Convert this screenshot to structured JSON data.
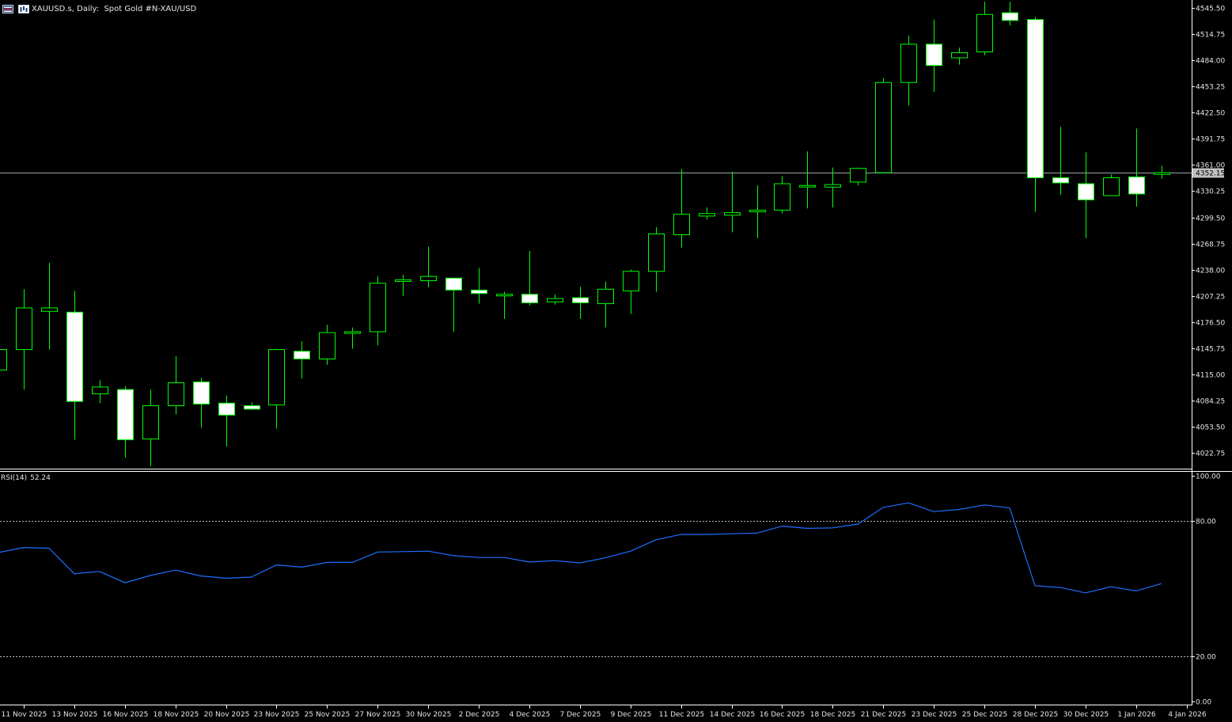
{
  "header": {
    "symbol": "XAUUSD.s,",
    "timeframe": "Daily:",
    "description": "Spot Gold #N-XAU/USD",
    "icons": [
      "chart-window-icon",
      "chart-type-icon"
    ]
  },
  "colors": {
    "background": "#000000",
    "candle": "#00ff00",
    "bull_body": "#000000",
    "bear_body": "#ffffff",
    "rsi_line": "#1e6fff",
    "price_line": "#9aa3ad",
    "price_tag_bg": "#c0c0c0",
    "text": "#e6e6e6"
  },
  "price_tag": "4352.15",
  "indicator": {
    "name": "RSI(14)",
    "value": "52.24"
  },
  "chart_data": [
    {
      "type": "candlestick",
      "title": "XAUUSD.s, Daily: Spot Gold #N-XAU/USD",
      "ylim": [
        4004,
        4555
      ],
      "y_ticks": [
        "4545.50",
        "4514.75",
        "4484.00",
        "4453.25",
        "4422.50",
        "4391.75",
        "4361.00",
        "4330.25",
        "4299.50",
        "4268.75",
        "4238.00",
        "4207.25",
        "4176.50",
        "4145.75",
        "4115.00",
        "4084.25",
        "4053.50",
        "4022.75"
      ],
      "x_labels": [
        "11 Nov 2025",
        "13 Nov 2025",
        "16 Nov 2025",
        "18 Nov 2025",
        "20 Nov 2025",
        "23 Nov 2025",
        "25 Nov 2025",
        "27 Nov 2025",
        "30 Nov 2025",
        "2 Dec 2025",
        "4 Dec 2025",
        "7 Dec 2025",
        "9 Dec 2025",
        "11 Dec 2025",
        "14 Dec 2025",
        "16 Dec 2025",
        "18 Dec 2025",
        "21 Dec 2025",
        "23 Dec 2025",
        "25 Dec 2025",
        "28 Dec 2025",
        "30 Dec 2025",
        "1 Jan 2026",
        "4 Jan 2026"
      ],
      "last_price": 4352.15,
      "candles": [
        {
          "o": 4120,
          "h": 4146,
          "l": 4105,
          "c": 4144
        },
        {
          "o": 4144,
          "h": 4215,
          "l": 4097,
          "c": 4193
        },
        {
          "o": 4189,
          "h": 4246,
          "l": 4144,
          "c": 4193
        },
        {
          "o": 4188,
          "h": 4213,
          "l": 4038,
          "c": 4083
        },
        {
          "o": 4092,
          "h": 4108,
          "l": 4081,
          "c": 4100
        },
        {
          "o": 4097,
          "h": 4101,
          "l": 4017,
          "c": 4038
        },
        {
          "o": 4039,
          "h": 4097,
          "l": 4007,
          "c": 4078
        },
        {
          "o": 4078,
          "h": 4136,
          "l": 4068,
          "c": 4105
        },
        {
          "o": 4106,
          "h": 4111,
          "l": 4052,
          "c": 4080
        },
        {
          "o": 4081,
          "h": 4090,
          "l": 4030,
          "c": 4067
        },
        {
          "o": 4078,
          "h": 4082,
          "l": 4073,
          "c": 4074
        },
        {
          "o": 4079,
          "h": 4145,
          "l": 4051,
          "c": 4144
        },
        {
          "o": 4142,
          "h": 4154,
          "l": 4110,
          "c": 4133
        },
        {
          "o": 4133,
          "h": 4173,
          "l": 4126,
          "c": 4164
        },
        {
          "o": 4164,
          "h": 4170,
          "l": 4145,
          "c": 4165
        },
        {
          "o": 4165,
          "h": 4230,
          "l": 4149,
          "c": 4222
        },
        {
          "o": 4225,
          "h": 4232,
          "l": 4207,
          "c": 4226
        },
        {
          "o": 4225,
          "h": 4265,
          "l": 4217,
          "c": 4230
        },
        {
          "o": 4228,
          "h": 4228,
          "l": 4165,
          "c": 4214
        },
        {
          "o": 4214,
          "h": 4240,
          "l": 4198,
          "c": 4210
        },
        {
          "o": 4209,
          "h": 4212,
          "l": 4180,
          "c": 4209
        },
        {
          "o": 4209,
          "h": 4260,
          "l": 4196,
          "c": 4199
        },
        {
          "o": 4200,
          "h": 4209,
          "l": 4197,
          "c": 4204
        },
        {
          "o": 4205,
          "h": 4218,
          "l": 4180,
          "c": 4199
        },
        {
          "o": 4198,
          "h": 4224,
          "l": 4170,
          "c": 4215
        },
        {
          "o": 4213,
          "h": 4238,
          "l": 4186,
          "c": 4236
        },
        {
          "o": 4236,
          "h": 4288,
          "l": 4212,
          "c": 4280
        },
        {
          "o": 4279,
          "h": 4356,
          "l": 4264,
          "c": 4303
        },
        {
          "o": 4301,
          "h": 4311,
          "l": 4297,
          "c": 4304
        },
        {
          "o": 4302,
          "h": 4353,
          "l": 4282,
          "c": 4305
        },
        {
          "o": 4306,
          "h": 4337,
          "l": 4275,
          "c": 4308
        },
        {
          "o": 4308,
          "h": 4348,
          "l": 4304,
          "c": 4339
        },
        {
          "o": 4336,
          "h": 4377,
          "l": 4310,
          "c": 4337
        },
        {
          "o": 4335,
          "h": 4358,
          "l": 4311,
          "c": 4338
        },
        {
          "o": 4341,
          "h": 4358,
          "l": 4337,
          "c": 4357
        },
        {
          "o": 4352,
          "h": 4463,
          "l": 4351,
          "c": 4458
        },
        {
          "o": 4458,
          "h": 4513,
          "l": 4431,
          "c": 4503
        },
        {
          "o": 4503,
          "h": 4532,
          "l": 4447,
          "c": 4478
        },
        {
          "o": 4487,
          "h": 4499,
          "l": 4479,
          "c": 4493
        },
        {
          "o": 4494,
          "h": 4553,
          "l": 4490,
          "c": 4538
        },
        {
          "o": 4540,
          "h": 4553,
          "l": 4525,
          "c": 4531
        },
        {
          "o": 4532,
          "h": 4535,
          "l": 4306,
          "c": 4346
        },
        {
          "o": 4346,
          "h": 4406,
          "l": 4326,
          "c": 4340
        },
        {
          "o": 4339,
          "h": 4376,
          "l": 4275,
          "c": 4320
        },
        {
          "o": 4325,
          "h": 4350,
          "l": 4325,
          "c": 4346
        },
        {
          "o": 4347,
          "h": 4404,
          "l": 4312,
          "c": 4327
        },
        {
          "o": 4350,
          "h": 4360,
          "l": 4345,
          "c": 4352
        }
      ]
    },
    {
      "type": "line",
      "title": "RSI(14) 52.24",
      "ylim": [
        0,
        100
      ],
      "y_ticks": [
        "100.00",
        "80.00",
        "20.00",
        "0.00"
      ],
      "levels": [
        80,
        20
      ],
      "series": [
        {
          "name": "RSI(14)",
          "values": [
            66.0,
            68.2,
            67.9,
            56.6,
            57.6,
            52.6,
            55.8,
            58.2,
            55.6,
            54.6,
            55.1,
            60.5,
            59.5,
            61.6,
            61.6,
            66.2,
            66.4,
            66.6,
            64.6,
            63.8,
            63.8,
            61.8,
            62.4,
            61.4,
            63.6,
            66.6,
            71.6,
            74.0,
            74.0,
            74.3,
            74.6,
            77.7,
            76.7,
            76.9,
            78.6,
            86.0,
            88.0,
            84.1,
            85.1,
            87.1,
            85.8,
            51.3,
            50.5,
            48.1,
            50.8,
            49.0,
            52.2
          ]
        }
      ]
    }
  ]
}
